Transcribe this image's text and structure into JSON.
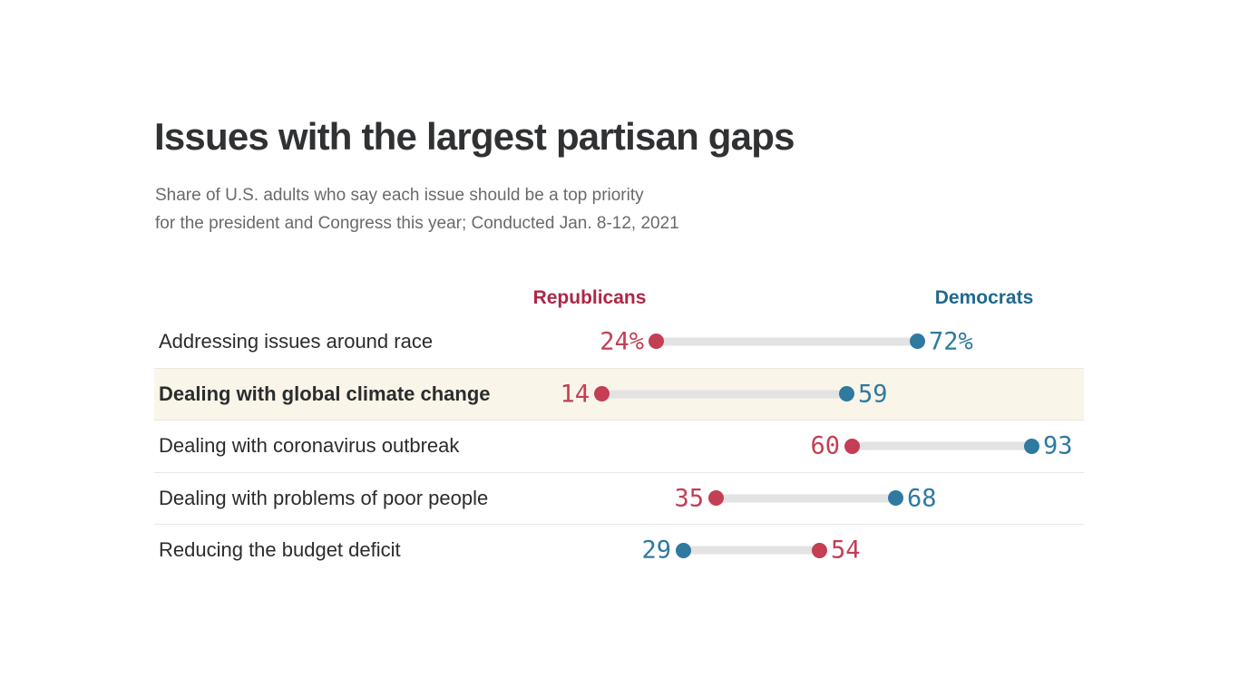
{
  "header": {
    "title": "Issues with the largest partisan gaps",
    "subtitle_line1": "Share of U.S. adults who say each issue should be a top priority",
    "subtitle_line2": "for the president and Congress this year; Conducted Jan. 8-12, 2021"
  },
  "legend": {
    "republicans": {
      "label": "Republicans",
      "color": "#ad2746"
    },
    "democrats": {
      "label": "Democrats",
      "color": "#21698c"
    }
  },
  "chart_data": {
    "type": "scatter",
    "subtype": "dumbbell",
    "title": "Issues with the largest partisan gaps",
    "subtitle": "Share of U.S. adults who say each issue should be a top priority for the president and Congress this year; Conducted Jan. 8-12, 2021",
    "unit": "percent",
    "x_axis": {
      "min": 0,
      "max": 100,
      "visible": false,
      "gridlines": false
    },
    "legend_position": "top",
    "series_colors": {
      "republican": "#c43e54",
      "democrat": "#2e7aa0"
    },
    "track_color": "#e3e3e3",
    "highlight_row_color": "#f9f5e8",
    "rows": [
      {
        "label": "Addressing issues around race",
        "republican": 24,
        "democrat": 72,
        "left_party": "republican",
        "value_labels": {
          "republican": "24%",
          "democrat": "72%"
        },
        "highlight": false
      },
      {
        "label": "Dealing with global climate change",
        "republican": 14,
        "democrat": 59,
        "left_party": "republican",
        "value_labels": {
          "republican": "14",
          "democrat": "59"
        },
        "highlight": true
      },
      {
        "label": "Dealing with coronavirus outbreak",
        "republican": 60,
        "democrat": 93,
        "left_party": "republican",
        "value_labels": {
          "republican": "60",
          "democrat": "93"
        },
        "highlight": false
      },
      {
        "label": "Dealing with problems of poor people",
        "republican": 35,
        "democrat": 68,
        "left_party": "republican",
        "value_labels": {
          "republican": "35",
          "democrat": "68"
        },
        "highlight": false
      },
      {
        "label": "Reducing the budget deficit",
        "republican": 54,
        "democrat": 29,
        "left_party": "democrat",
        "value_labels": {
          "republican": "54",
          "democrat": "29"
        },
        "highlight": false
      }
    ]
  }
}
